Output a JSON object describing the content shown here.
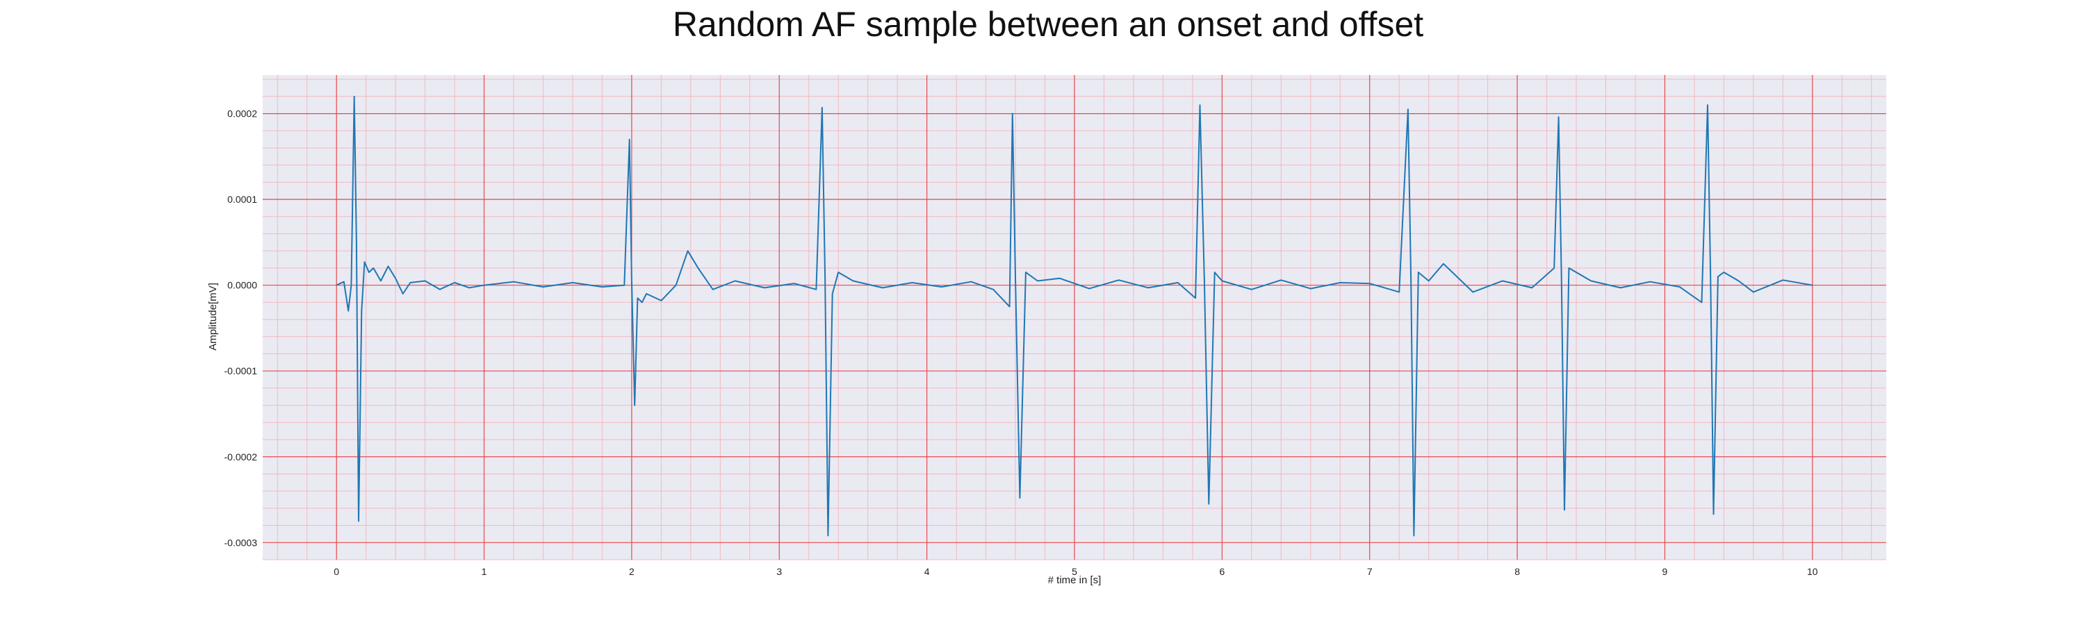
{
  "chart_data": {
    "type": "line",
    "title": "Random AF sample between an onset and offset",
    "xlabel": "# time in [s]",
    "ylabel": "Amplitude[mV]",
    "xlim": [
      -0.5,
      10.5
    ],
    "ylim": [
      -0.00032,
      0.000245
    ],
    "xticks": [
      0,
      1,
      2,
      3,
      4,
      5,
      6,
      7,
      8,
      9,
      10
    ],
    "xtick_labels": [
      "0",
      "1",
      "2",
      "3",
      "4",
      "5",
      "6",
      "7",
      "8",
      "9",
      "10"
    ],
    "yticks": [
      0.0002,
      0.0001,
      0.0,
      -0.0001,
      -0.0002,
      -0.0003
    ],
    "ytick_labels": [
      "0.0002",
      "0.0001",
      "0.0000",
      "-0.0001",
      "-0.0002",
      "-0.0003"
    ],
    "grid": true,
    "minor_grid": true,
    "colors": {
      "background": "#eaeaf2",
      "major_grid": "#e8474c",
      "minor_grid": "#f2b8c2",
      "line": "#1f77b4"
    },
    "series": [
      {
        "x": [
          0.0,
          0.05,
          0.08,
          0.1,
          0.12,
          0.135,
          0.15,
          0.17,
          0.19,
          0.22,
          0.25,
          0.3,
          0.35,
          0.4,
          0.45,
          0.5,
          0.6,
          0.7,
          0.8,
          0.9,
          1.0,
          1.2,
          1.4,
          1.6,
          1.8,
          1.95,
          1.985,
          2.0,
          2.02,
          2.04,
          2.07,
          2.1,
          2.2,
          2.3,
          2.38,
          2.45,
          2.55,
          2.7,
          2.9,
          3.1,
          3.25,
          3.29,
          3.31,
          3.33,
          3.36,
          3.4,
          3.5,
          3.7,
          3.9,
          4.1,
          4.3,
          4.45,
          4.56,
          4.58,
          4.6,
          4.63,
          4.67,
          4.75,
          4.9,
          5.1,
          5.3,
          5.5,
          5.7,
          5.82,
          5.85,
          5.88,
          5.91,
          5.95,
          6.0,
          6.2,
          6.4,
          6.6,
          6.8,
          7.0,
          7.2,
          7.26,
          7.28,
          7.3,
          7.33,
          7.4,
          7.5,
          7.7,
          7.9,
          8.1,
          8.25,
          8.28,
          8.3,
          8.32,
          8.35,
          8.4,
          8.5,
          8.7,
          8.9,
          9.1,
          9.25,
          9.29,
          9.31,
          9.33,
          9.36,
          9.4,
          9.5,
          9.6,
          9.8,
          10.0
        ],
        "y": [
          0.0,
          4e-06,
          -3e-05,
          0.0,
          0.00022,
          5e-05,
          -0.000275,
          -3e-05,
          2.7e-05,
          1.5e-05,
          2e-05,
          5e-06,
          2.2e-05,
          8e-06,
          -1e-05,
          3e-06,
          5e-06,
          -5e-06,
          3e-06,
          -3e-06,
          0.0,
          4e-06,
          -2e-06,
          3e-06,
          -2e-06,
          0.0,
          0.00017,
          5e-06,
          -0.00014,
          -1.5e-05,
          -2e-05,
          -1e-05,
          -1.8e-05,
          0.0,
          4e-05,
          2e-05,
          -5e-06,
          5e-06,
          -3e-06,
          2e-06,
          -5e-06,
          0.000207,
          1e-05,
          -0.000292,
          -1e-05,
          1.5e-05,
          5e-06,
          -3e-06,
          3e-06,
          -2e-06,
          4e-06,
          -5e-06,
          -2.5e-05,
          0.0002,
          5e-06,
          -0.000248,
          1.5e-05,
          5e-06,
          8e-06,
          -4e-06,
          6e-06,
          -3e-06,
          3e-06,
          -1.5e-05,
          0.00021,
          5e-06,
          -0.000255,
          1.5e-05,
          5e-06,
          -5e-06,
          6e-06,
          -4e-06,
          3e-06,
          2e-06,
          -8e-06,
          0.000205,
          5e-06,
          -0.000292,
          1.5e-05,
          5e-06,
          2.5e-05,
          -8e-06,
          5e-06,
          -3e-06,
          2e-05,
          0.000196,
          5e-06,
          -0.000262,
          2e-05,
          1.5e-05,
          5e-06,
          -3e-06,
          4e-06,
          -2e-06,
          -2e-05,
          0.00021,
          5e-06,
          -0.000267,
          1e-05,
          1.5e-05,
          5e-06,
          -8e-06,
          6e-06,
          0.0
        ]
      }
    ]
  }
}
